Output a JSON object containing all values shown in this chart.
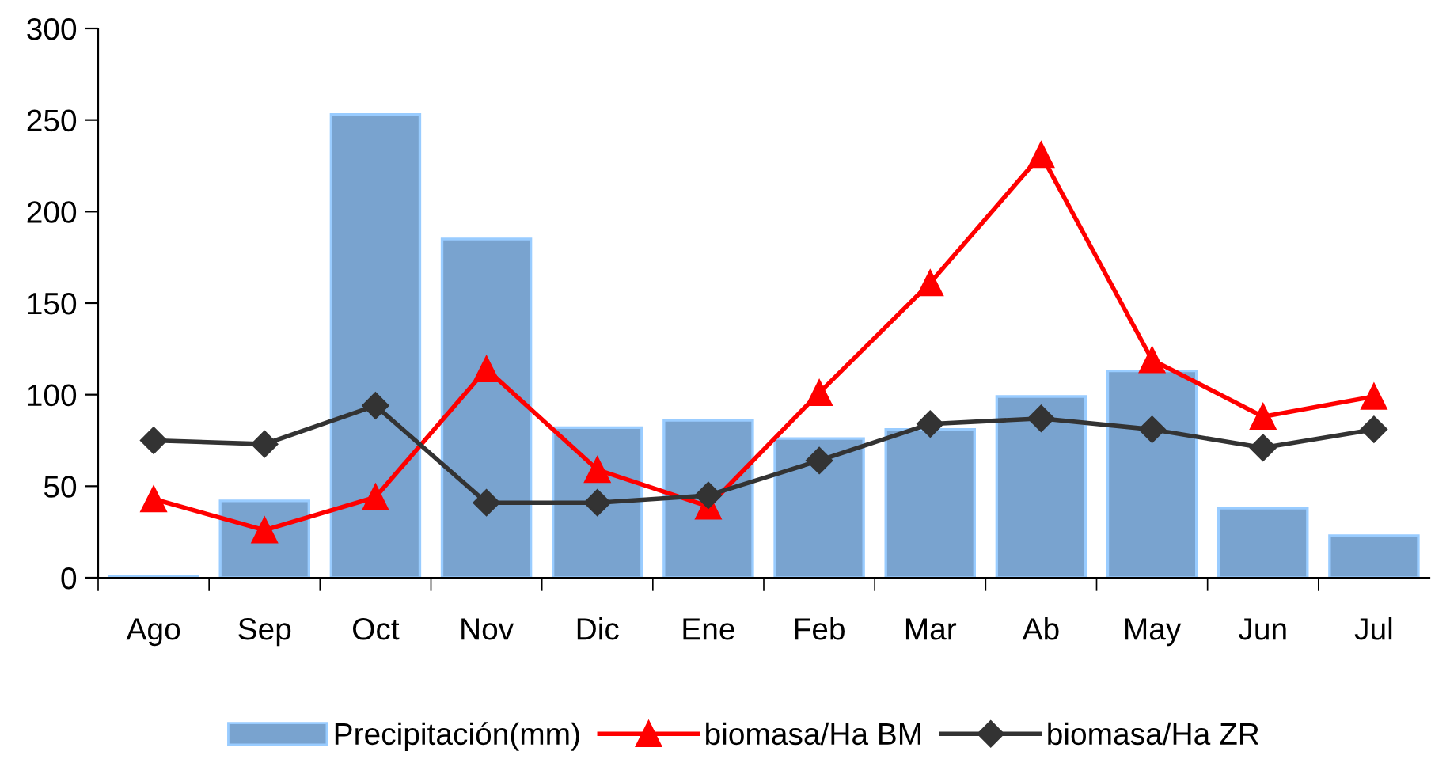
{
  "chart_data": {
    "type": "bar",
    "categories": [
      "Ago",
      "Sep",
      "Oct",
      "Nov",
      "Dic",
      "Ene",
      "Feb",
      "Mar",
      "Ab",
      "May",
      "Jun",
      "Jul"
    ],
    "series": [
      {
        "name": "Precipitación(mm)",
        "color": "#79a3cf",
        "values": [
          1,
          42,
          253,
          185,
          82,
          86,
          76,
          81,
          99,
          113,
          38,
          23
        ]
      },
      {
        "name": "biomasa/Ha BM",
        "type": "line",
        "marker": "triangle",
        "color": "#ff0000",
        "values": [
          43,
          26,
          44,
          114,
          59,
          39,
          101,
          161,
          231,
          119,
          88,
          99
        ]
      },
      {
        "name": "biomasa/Ha ZR",
        "type": "line",
        "marker": "diamond",
        "color": "#333333",
        "values": [
          75,
          73,
          94,
          41,
          41,
          45,
          64,
          84,
          87,
          81,
          71,
          81
        ]
      }
    ],
    "ylim": [
      0,
      300
    ],
    "yticks": [
      0,
      50,
      100,
      150,
      200,
      250,
      300
    ],
    "grid": false,
    "legend": "bottom"
  }
}
